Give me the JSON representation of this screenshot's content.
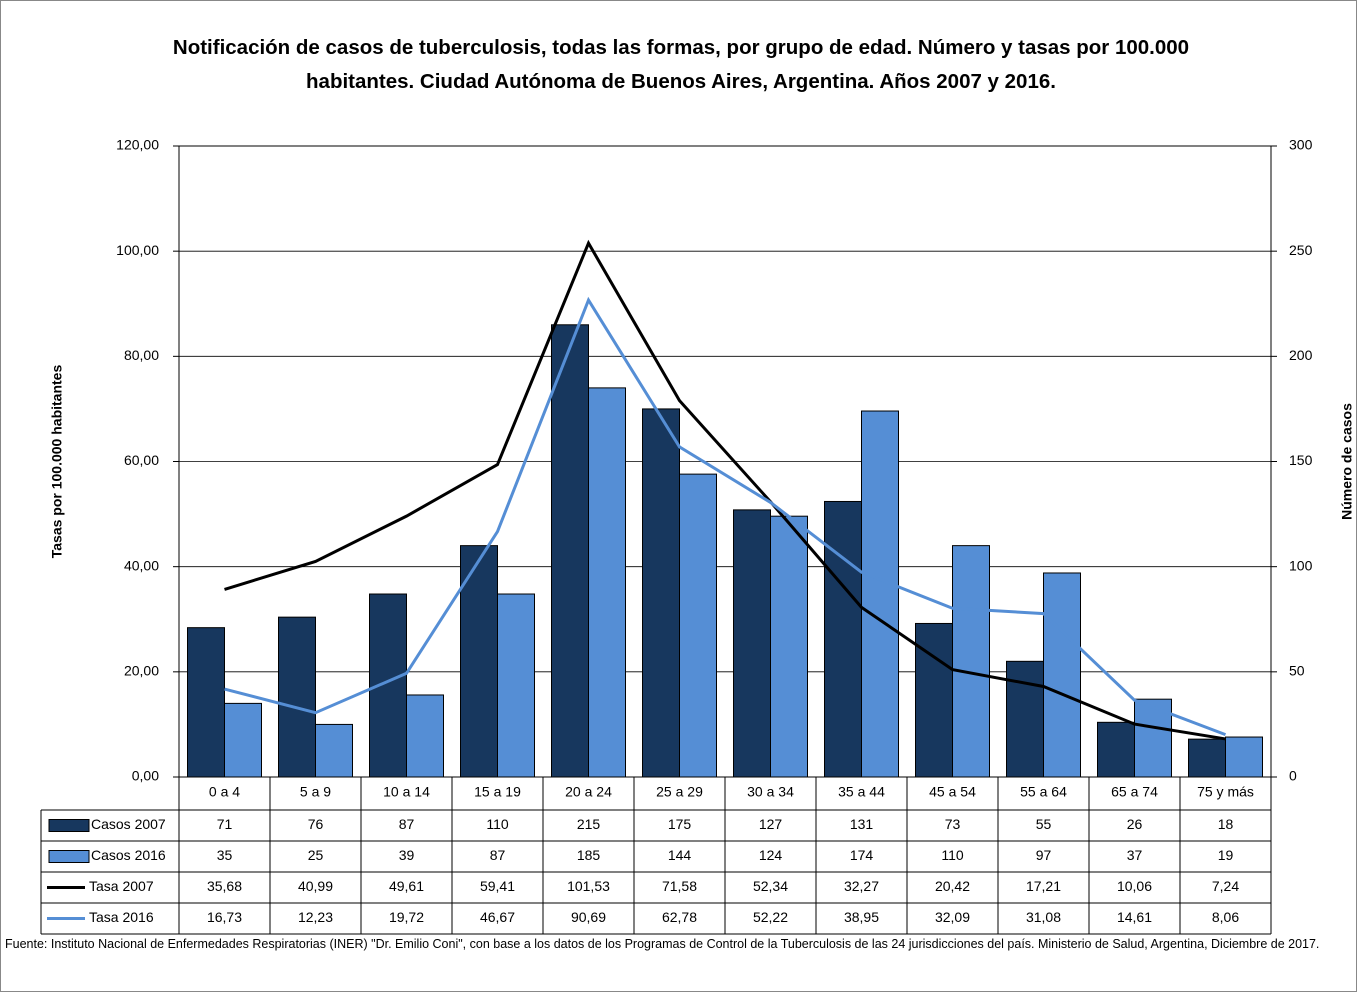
{
  "chart_data": {
    "type": "bar",
    "title": "Notificación de casos de tuberculosis, todas las formas, por grupo de edad. Número y tasas por 100.000 habitantes. Ciudad Autónoma de Buenos Aires, Argentina. Años 2007 y 2016.",
    "ylabel": "Tasas por 100.000 habitantes",
    "y2label": "Número de casos",
    "categories": [
      "0 a 4",
      "5 a 9",
      "10 a 14",
      "15 a 19",
      "20 a 24",
      "25 a 29",
      "30 a 34",
      "35 a 44",
      "45 a 54",
      "55 a 64",
      "65 a 74",
      "75 y más"
    ],
    "series": [
      {
        "name": "Casos 2007",
        "type": "bar",
        "axis": "y2",
        "color": "#17375e",
        "values": [
          71,
          76,
          87,
          110,
          215,
          175,
          127,
          131,
          73,
          55,
          26,
          18
        ]
      },
      {
        "name": "Casos 2016",
        "type": "bar",
        "axis": "y2",
        "color": "#558ed5",
        "values": [
          35,
          25,
          39,
          87,
          185,
          144,
          124,
          174,
          110,
          97,
          37,
          19
        ]
      },
      {
        "name": "Tasa 2007",
        "type": "line",
        "color": "#000000",
        "values": [
          35.68,
          40.99,
          49.61,
          59.41,
          101.53,
          71.58,
          52.34,
          32.27,
          20.42,
          17.21,
          10.06,
          7.24
        ],
        "value_labels": [
          "35,68",
          "40,99",
          "49,61",
          "59,41",
          "101,53",
          "71,58",
          "52,34",
          "32,27",
          "20,42",
          "17,21",
          "10,06",
          "7,24"
        ]
      },
      {
        "name": "Tasa 2016",
        "type": "line",
        "color": "#558ed5",
        "values": [
          16.73,
          12.23,
          19.72,
          46.67,
          90.69,
          62.78,
          52.22,
          38.95,
          32.09,
          31.08,
          14.61,
          8.06
        ],
        "value_labels": [
          "16,73",
          "12,23",
          "19,72",
          "46,67",
          "90,69",
          "62,78",
          "52,22",
          "38,95",
          "32,09",
          "31,08",
          "14,61",
          "8,06"
        ]
      }
    ],
    "ylim": [
      0,
      120
    ],
    "yticks": [
      {
        "value": 0,
        "label": "0,00"
      },
      {
        "value": 20,
        "label": "20,00"
      },
      {
        "value": 40,
        "label": "40,00"
      },
      {
        "value": 60,
        "label": "60,00"
      },
      {
        "value": 80,
        "label": "80,00"
      },
      {
        "value": 100,
        "label": "100,00"
      },
      {
        "value": 120,
        "label": "120,00"
      }
    ],
    "y2lim": [
      0,
      300
    ],
    "y2ticks": [
      0,
      50,
      100,
      150,
      200,
      250,
      300
    ],
    "grid": true,
    "source": "Fuente: Instituto Nacional de Enfermedades Respiratorias (INER) \"Dr. Emilio Coni\", con base a los datos de los Programas de Control de la Tuberculosis de las 24 jurisdicciones del país. Ministerio de Salud, Argentina, Diciembre de 2017."
  }
}
